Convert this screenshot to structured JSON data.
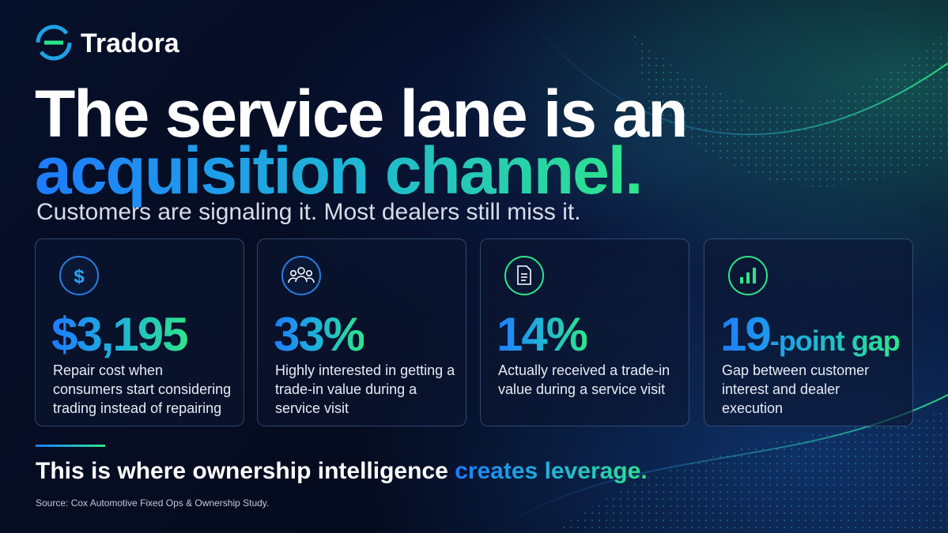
{
  "brand": "Tradora",
  "headline": {
    "line1": "The service lane is an",
    "line2": "acquisition channel."
  },
  "subtitle": "Customers are signaling it.  Most dealers still miss it.",
  "cards": [
    {
      "stat": "$3,195",
      "description": "Repair cost when consumers start considering trading instead of repairing"
    },
    {
      "stat": "33%",
      "description": "Highly interested in getting a trade-in value during a service visit"
    },
    {
      "stat": "14%",
      "description": "Actually received a trade-in value during a service visit"
    },
    {
      "stat": "19",
      "stat_suffix": "-point gap",
      "description": "Gap between customer interest and dealer execution"
    }
  ],
  "footer": {
    "text": "This is where ownership intelligence",
    "highlight": "creates leverage."
  },
  "source": "Source: Cox Automotive Fixed Ops & Ownership Study."
}
